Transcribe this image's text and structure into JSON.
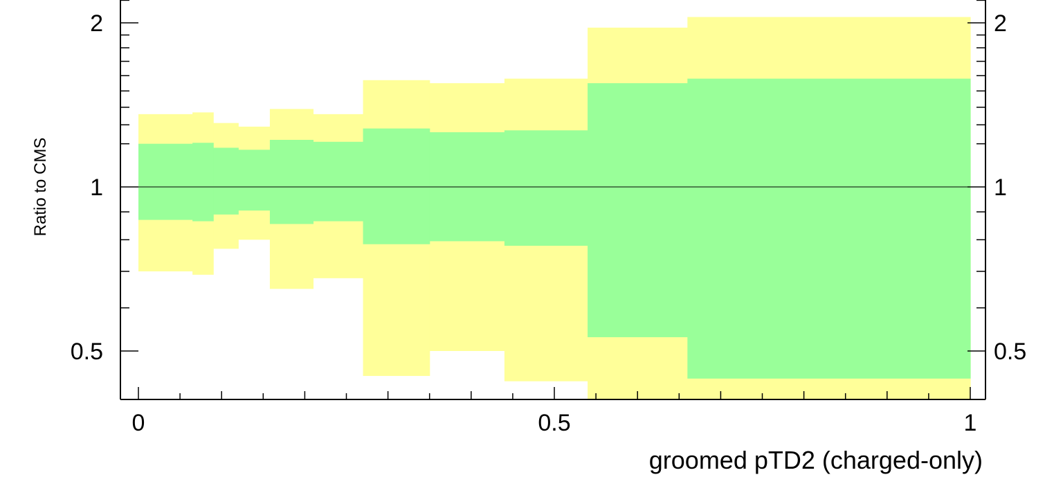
{
  "chart_data": {
    "type": "area",
    "title": "",
    "xlabel": "groomed pTD2 (charged-only)",
    "ylabel": "Ratio to CMS",
    "xlim": [
      -0.02,
      1.02
    ],
    "ylim": [
      0.4,
      2.2
    ],
    "y_scale": "log",
    "grid": false,
    "reference_line": 1,
    "x_ticks": [
      0,
      0.5,
      1
    ],
    "x_tick_labels": [
      "0",
      "0.5",
      "1"
    ],
    "y_ticks": [
      0.5,
      1,
      2
    ],
    "y_tick_labels": [
      "0.5",
      "1",
      "2"
    ],
    "bin_edges": [
      0,
      0.065,
      0.09,
      0.12,
      0.158,
      0.21,
      0.27,
      0.35,
      0.44,
      0.54,
      0.66,
      1.0
    ],
    "series": [
      {
        "color": "#ffff99",
        "lower": [
          0.7,
          0.69,
          0.77,
          0.8,
          0.65,
          0.68,
          0.45,
          0.5,
          0.44,
          0.2,
          0.2
        ],
        "upper": [
          1.36,
          1.37,
          1.31,
          1.29,
          1.39,
          1.36,
          1.57,
          1.55,
          1.58,
          1.96,
          2.05
        ]
      },
      {
        "color": "#99ff99",
        "lower": [
          0.87,
          0.865,
          0.89,
          0.905,
          0.855,
          0.865,
          0.785,
          0.795,
          0.78,
          0.53,
          0.445
        ],
        "upper": [
          1.2,
          1.205,
          1.18,
          1.17,
          1.22,
          1.21,
          1.28,
          1.26,
          1.27,
          1.55,
          1.58
        ]
      }
    ]
  }
}
